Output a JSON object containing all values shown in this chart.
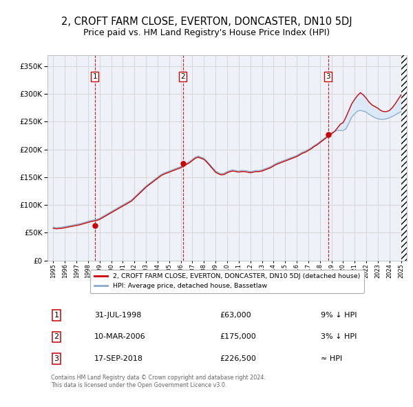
{
  "title": "2, CROFT FARM CLOSE, EVERTON, DONCASTER, DN10 5DJ",
  "subtitle": "Price paid vs. HM Land Registry's House Price Index (HPI)",
  "title_fontsize": 10.5,
  "subtitle_fontsize": 9.0,
  "ylim": [
    0,
    370000
  ],
  "yticks": [
    0,
    50000,
    100000,
    150000,
    200000,
    250000,
    300000,
    350000
  ],
  "ytick_labels": [
    "£0",
    "£50K",
    "£100K",
    "£150K",
    "£200K",
    "£250K",
    "£300K",
    "£350K"
  ],
  "xlim_start": 1994.5,
  "xlim_end": 2025.5,
  "xtick_years": [
    1995,
    1996,
    1997,
    1998,
    1999,
    2000,
    2001,
    2002,
    2003,
    2004,
    2005,
    2006,
    2007,
    2008,
    2009,
    2010,
    2011,
    2012,
    2013,
    2014,
    2015,
    2016,
    2017,
    2018,
    2019,
    2020,
    2021,
    2022,
    2023,
    2024,
    2025
  ],
  "sale_dates": [
    1998.58,
    2006.19,
    2018.71
  ],
  "sale_prices": [
    63000,
    175000,
    226500
  ],
  "sale_labels": [
    "1",
    "2",
    "3"
  ],
  "red_line_color": "#cc0000",
  "blue_line_color": "#88aacc",
  "blue_fill_color": "#d8e8f8",
  "vline_color": "#cc0000",
  "background_color": "#ffffff",
  "plot_bg_color": "#eef2f8",
  "grid_color": "#cccccc",
  "legend_label_red": "2, CROFT FARM CLOSE, EVERTON, DONCASTER, DN10 5DJ (detached house)",
  "legend_label_blue": "HPI: Average price, detached house, Bassetlaw",
  "table_rows": [
    [
      "1",
      "31-JUL-1998",
      "£63,000",
      "9% ↓ HPI"
    ],
    [
      "2",
      "10-MAR-2006",
      "£175,000",
      "3% ↓ HPI"
    ],
    [
      "3",
      "17-SEP-2018",
      "£226,500",
      "≈ HPI"
    ]
  ],
  "footer_text": "Contains HM Land Registry data © Crown copyright and database right 2024.\nThis data is licensed under the Open Government Licence v3.0.",
  "hpi_years": [
    1995.0,
    1995.25,
    1995.5,
    1995.75,
    1996.0,
    1996.25,
    1996.5,
    1996.75,
    1997.0,
    1997.25,
    1997.5,
    1997.75,
    1998.0,
    1998.25,
    1998.5,
    1998.75,
    1999.0,
    1999.25,
    1999.5,
    1999.75,
    2000.0,
    2000.25,
    2000.5,
    2000.75,
    2001.0,
    2001.25,
    2001.5,
    2001.75,
    2002.0,
    2002.25,
    2002.5,
    2002.75,
    2003.0,
    2003.25,
    2003.5,
    2003.75,
    2004.0,
    2004.25,
    2004.5,
    2004.75,
    2005.0,
    2005.25,
    2005.5,
    2005.75,
    2006.0,
    2006.25,
    2006.5,
    2006.75,
    2007.0,
    2007.25,
    2007.5,
    2007.75,
    2008.0,
    2008.25,
    2008.5,
    2008.75,
    2009.0,
    2009.25,
    2009.5,
    2009.75,
    2010.0,
    2010.25,
    2010.5,
    2010.75,
    2011.0,
    2011.25,
    2011.5,
    2011.75,
    2012.0,
    2012.25,
    2012.5,
    2012.75,
    2013.0,
    2013.25,
    2013.5,
    2013.75,
    2014.0,
    2014.25,
    2014.5,
    2014.75,
    2015.0,
    2015.25,
    2015.5,
    2015.75,
    2016.0,
    2016.25,
    2016.5,
    2016.75,
    2017.0,
    2017.25,
    2017.5,
    2017.75,
    2018.0,
    2018.25,
    2018.5,
    2018.75,
    2019.0,
    2019.25,
    2019.5,
    2019.75,
    2020.0,
    2020.25,
    2020.5,
    2020.75,
    2021.0,
    2021.25,
    2021.5,
    2021.75,
    2022.0,
    2022.25,
    2022.5,
    2022.75,
    2023.0,
    2023.25,
    2023.5,
    2023.75,
    2024.0,
    2024.25,
    2024.5,
    2024.75,
    2025.0
  ],
  "hpi_values": [
    60000,
    59000,
    59500,
    60000,
    61000,
    62000,
    63000,
    64000,
    65000,
    66000,
    67500,
    69000,
    70500,
    72000,
    73000,
    74000,
    76000,
    79000,
    82000,
    85000,
    88000,
    91000,
    94000,
    97000,
    100000,
    103000,
    106000,
    109000,
    114000,
    119000,
    124000,
    129000,
    134000,
    138000,
    142000,
    146000,
    150000,
    154000,
    157000,
    159000,
    161000,
    163000,
    165000,
    167000,
    169000,
    172000,
    175000,
    178000,
    182000,
    186000,
    188000,
    186000,
    184000,
    179000,
    173000,
    167000,
    161000,
    158000,
    156000,
    157000,
    160000,
    162000,
    163000,
    162000,
    161000,
    162000,
    162000,
    161000,
    160000,
    161000,
    162000,
    162000,
    163000,
    165000,
    167000,
    169000,
    172000,
    175000,
    177000,
    179000,
    181000,
    183000,
    185000,
    187000,
    189000,
    192000,
    195000,
    197000,
    200000,
    203000,
    207000,
    210000,
    214000,
    218000,
    222000,
    226000,
    230000,
    232000,
    234000,
    234000,
    234000,
    237000,
    247000,
    258000,
    264000,
    269000,
    270000,
    269000,
    267000,
    263000,
    260000,
    257000,
    255000,
    254000,
    254000,
    255000,
    257000,
    259000,
    262000,
    265000,
    268000
  ],
  "red_values": [
    58000,
    57000,
    57500,
    58000,
    59000,
    60000,
    61000,
    62000,
    63000,
    64000,
    65500,
    67000,
    68500,
    70000,
    71000,
    72000,
    74000,
    77000,
    80000,
    83000,
    86000,
    89000,
    92000,
    95000,
    98000,
    101000,
    104000,
    107000,
    112000,
    117000,
    122000,
    127000,
    132000,
    136000,
    140000,
    144000,
    148000,
    152000,
    155000,
    157000,
    159000,
    161000,
    163000,
    165000,
    167000,
    170000,
    173000,
    176000,
    180000,
    184000,
    186000,
    184000,
    182000,
    177000,
    171000,
    165000,
    159000,
    156000,
    154000,
    155000,
    158000,
    160000,
    161000,
    160000,
    159000,
    160000,
    160000,
    159000,
    158000,
    159000,
    160000,
    160000,
    161000,
    163000,
    165000,
    167000,
    170000,
    173000,
    175000,
    177000,
    179000,
    181000,
    183000,
    185000,
    187000,
    190000,
    193000,
    195000,
    198000,
    201000,
    205000,
    208000,
    212000,
    216000,
    220000,
    224000,
    228000,
    232000,
    238000,
    245000,
    248000,
    258000,
    270000,
    282000,
    290000,
    297000,
    302000,
    298000,
    292000,
    285000,
    280000,
    277000,
    274000,
    270000,
    268000,
    268000,
    270000,
    275000,
    282000,
    290000,
    298000
  ],
  "hatch_start": 2025.0,
  "hatch_end": 2025.5
}
